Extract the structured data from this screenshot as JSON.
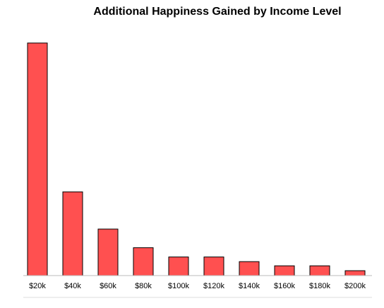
{
  "chart_data": {
    "type": "bar",
    "title": "Additional Happiness Gained by Income Level",
    "categories": [
      "$20k",
      "$40k",
      "$60k",
      "$80k",
      "$100k",
      "$120k",
      "$140k",
      "$160k",
      "$180k",
      "$200k"
    ],
    "values": [
      100,
      36,
      20,
      12,
      8,
      8,
      6,
      4.2,
      4.2,
      2.1
    ],
    "color": "#ff5050",
    "ylim": [
      0,
      100
    ]
  }
}
